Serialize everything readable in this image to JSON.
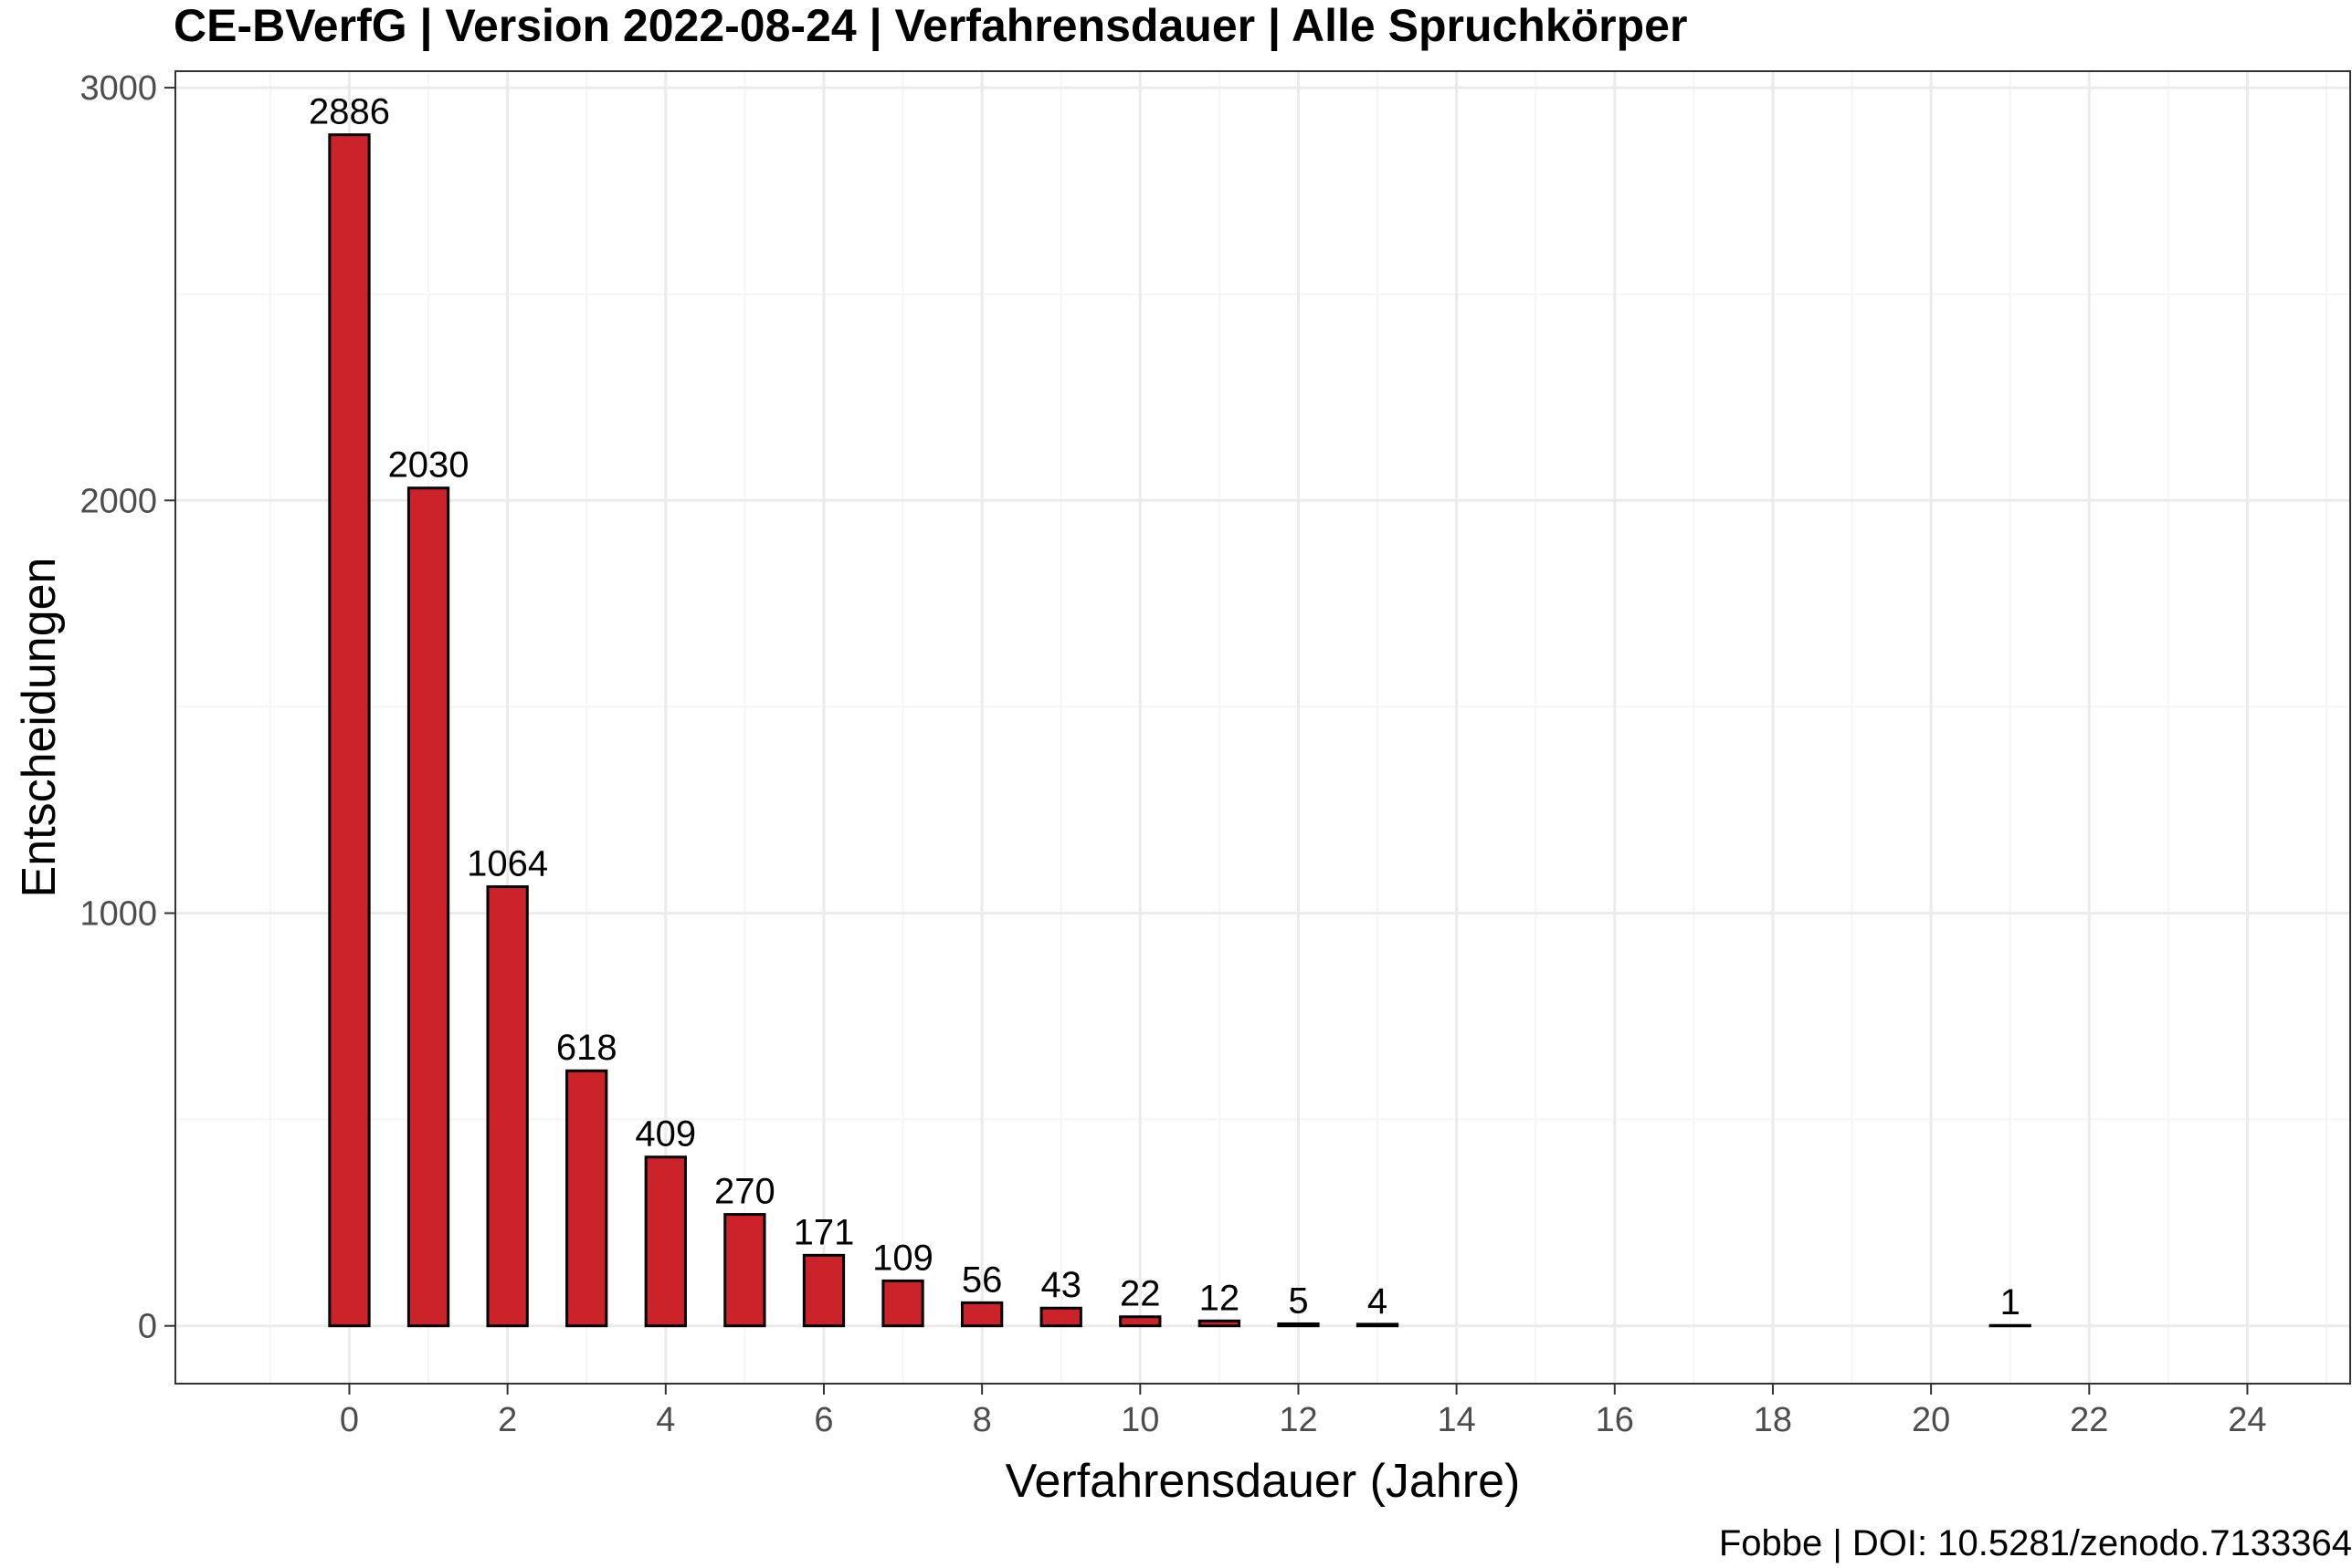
{
  "chart_data": {
    "type": "bar",
    "title": "CE-BVerfG | Version 2022-08-24 | Verfahrensdauer | Alle Spruchkörper",
    "xlabel": "Verfahrensdauer (Jahre)",
    "ylabel": "Entscheidungen",
    "caption": "Fobbe | DOI: 10.5281/zenodo.7133364",
    "x": [
      0,
      1,
      2,
      3,
      4,
      5,
      6,
      7,
      8,
      9,
      10,
      11,
      12,
      13,
      21
    ],
    "values": [
      2886,
      2030,
      1064,
      618,
      409,
      270,
      171,
      109,
      56,
      43,
      22,
      12,
      5,
      4,
      1
    ],
    "xlim": [
      -2.2,
      25.3
    ],
    "ylim": [
      -140,
      3040
    ],
    "x_ticks": [
      0,
      2,
      4,
      6,
      8,
      10,
      12,
      14,
      16,
      18,
      20,
      22,
      24
    ],
    "y_ticks": [
      0,
      1000,
      2000,
      3000
    ],
    "grid": true,
    "legend": "none",
    "colors": {
      "bar_fill": "#cc2229",
      "bar_stroke": "#000000",
      "grid_major": "#ebebeb",
      "grid_minor": "#f5f5f5",
      "panel_border": "#333333",
      "tick_text": "#4d4d4d"
    }
  }
}
